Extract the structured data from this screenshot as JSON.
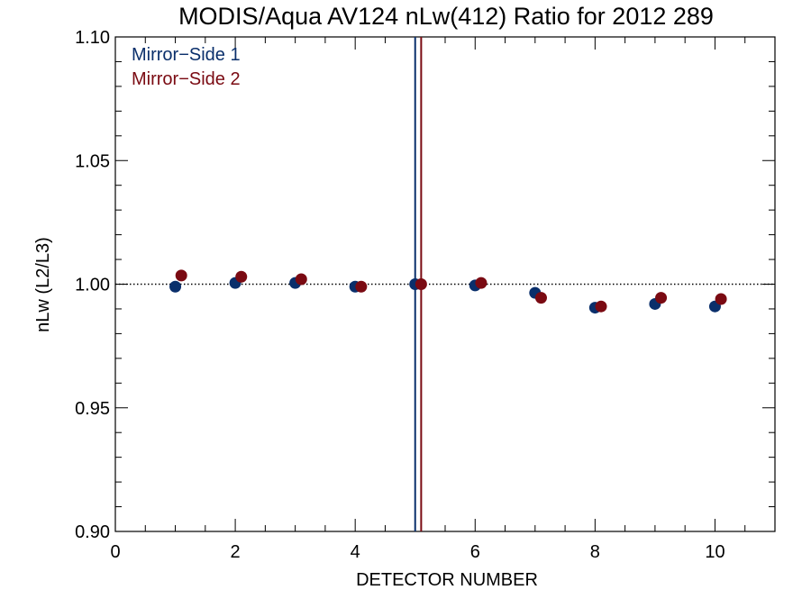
{
  "chart_data": {
    "type": "scatter",
    "title": "MODIS/Aqua AV124 nLw(412) Ratio for 2012 289",
    "xlabel": "DETECTOR NUMBER",
    "ylabel": "nLw (L2/L3)",
    "xlim": [
      0,
      11
    ],
    "ylim": [
      0.9,
      1.1
    ],
    "x_ticks": [
      0,
      2,
      4,
      6,
      8,
      10
    ],
    "x_tick_labels": [
      "0",
      "2",
      "4",
      "6",
      "8",
      "10"
    ],
    "y_ticks": [
      0.9,
      0.95,
      1.0,
      1.05,
      1.1
    ],
    "y_tick_labels": [
      "0.90",
      "0.95",
      "1.00",
      "1.05",
      "1.10"
    ],
    "x_minor_step": 0.5,
    "y_minor_step": 0.01,
    "reference_line": 1.0,
    "grid": false,
    "legend_position": "top-left",
    "vertical_lines": [
      {
        "x": 5.0,
        "color": "#0a2f6b"
      },
      {
        "x": 5.1,
        "color": "#7a0a12"
      }
    ],
    "series": [
      {
        "name": "Mirror−Side 1",
        "color": "#0a2f6b",
        "x": [
          1,
          2,
          3,
          4,
          5,
          6,
          7,
          8,
          9,
          10
        ],
        "y": [
          0.999,
          1.0005,
          1.0005,
          0.999,
          1.0,
          0.9995,
          0.9965,
          0.9905,
          0.992,
          0.991
        ]
      },
      {
        "name": "Mirror−Side 2",
        "color": "#7a0a12",
        "x": [
          1.1,
          2.1,
          3.1,
          4.1,
          5.1,
          6.1,
          7.1,
          8.1,
          9.1,
          10.1
        ],
        "y": [
          1.0035,
          1.003,
          1.002,
          0.999,
          1.0,
          1.0005,
          0.9945,
          0.991,
          0.9945,
          0.994
        ]
      }
    ]
  }
}
